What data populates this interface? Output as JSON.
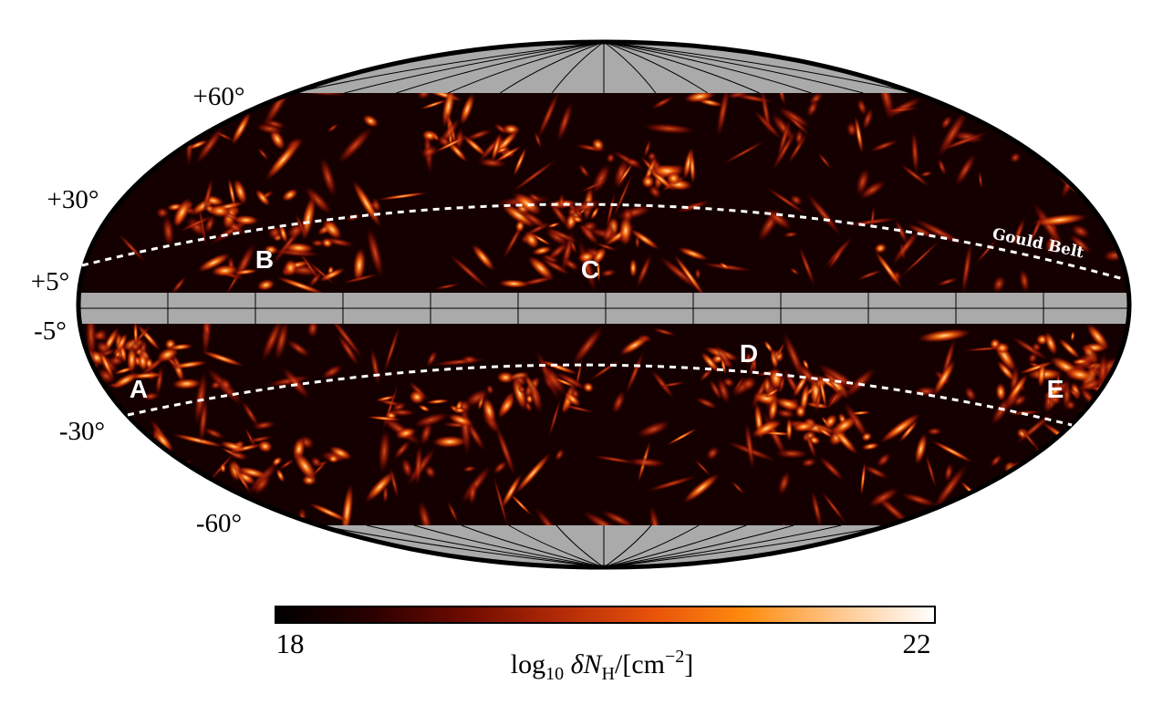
{
  "map": {
    "projection": "mollweide",
    "masked_color": "#aaaaaa",
    "dark_color": "#140000",
    "latitude_labels": {
      "p60": "+60°",
      "p30": "+30°",
      "p5": "+5°",
      "m5": "-5°",
      "m30": "-30°",
      "m60": "-60°"
    },
    "regions": {
      "a": "A",
      "b": "B",
      "c": "C",
      "d": "D",
      "e": "E"
    },
    "gould_belt_label": "Gould Belt"
  },
  "colorbar": {
    "min_label": "18",
    "max_label": "22",
    "colors": [
      "#000000",
      "#2a0000",
      "#6e0a00",
      "#b02a08",
      "#e8520a",
      "#ff8c10",
      "#ffc890",
      "#ffffff"
    ]
  }
}
